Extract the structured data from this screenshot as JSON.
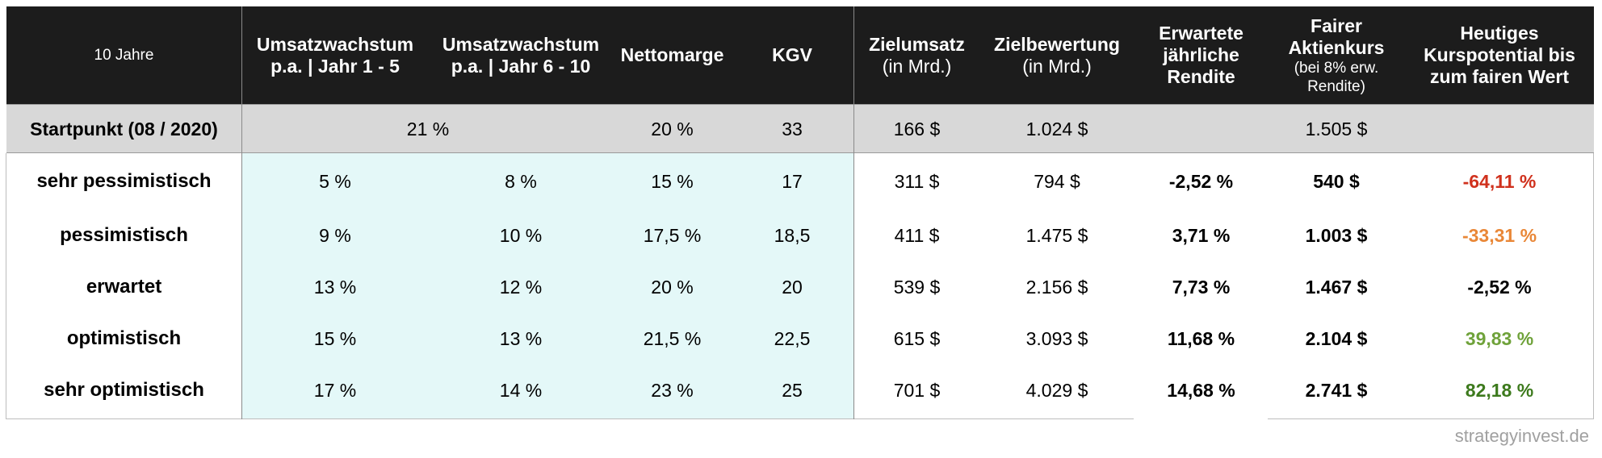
{
  "header": {
    "col0": "10 Jahre",
    "col1": [
      "Umsatzwachstum",
      "p.a. | Jahr 1 - 5"
    ],
    "col2": [
      "Umsatzwachstum",
      "p.a. | Jahr 6 - 10"
    ],
    "col3": "Nettomarge",
    "col4": "KGV",
    "col5": [
      "Zielumsatz",
      "(in Mrd.)"
    ],
    "col6": [
      "Zielbewertung",
      "(in Mrd.)"
    ],
    "col7": [
      "Erwartete",
      "jährliche",
      "Rendite"
    ],
    "col8": [
      "Fairer",
      "Aktienkurs",
      "(bei 8% erw.",
      "Rendite)"
    ],
    "col9": [
      "Heutiges",
      "Kurspotential bis",
      "zum fairen Wert"
    ]
  },
  "start": {
    "label": "Startpunkt (08 / 2020)",
    "growth": "21 %",
    "margin": "20 %",
    "kgv": "33",
    "revenue": "166 $",
    "valuation": "1.024 $",
    "price": "1.505 $"
  },
  "rows": [
    {
      "label": "sehr pessimistisch",
      "g1": "5 %",
      "g2": "8 %",
      "margin": "15 %",
      "kgv": "17",
      "revenue": "311 $",
      "valuation": "794 $",
      "ret": "-2,52 %",
      "price": "540 $",
      "potential": "-64,11 %",
      "color": "#d0311d"
    },
    {
      "label": "pessimistisch",
      "g1": "9 %",
      "g2": "10 %",
      "margin": "17,5 %",
      "kgv": "18,5",
      "revenue": "411 $",
      "valuation": "1.475 $",
      "ret": "3,71 %",
      "price": "1.003 $",
      "potential": "-33,31 %",
      "color": "#e98737"
    },
    {
      "label": "erwartet",
      "g1": "13 %",
      "g2": "12 %",
      "margin": "20 %",
      "kgv": "20",
      "revenue": "539 $",
      "valuation": "2.156 $",
      "ret": "7,73 %",
      "price": "1.467 $",
      "potential": "-2,52 %",
      "color": "#000000"
    },
    {
      "label": "optimistisch",
      "g1": "15 %",
      "g2": "13 %",
      "margin": "21,5 %",
      "kgv": "22,5",
      "revenue": "615 $",
      "valuation": "3.093 $",
      "ret": "11,68 %",
      "price": "2.104 $",
      "potential": "39,83 %",
      "color": "#6fa23a"
    },
    {
      "label": "sehr optimistisch",
      "g1": "17 %",
      "g2": "14 %",
      "margin": "23 %",
      "kgv": "25",
      "revenue": "701 $",
      "valuation": "4.029 $",
      "ret": "14,68 %",
      "price": "2.741 $",
      "potential": "82,18 %",
      "color": "#3d7a1d"
    }
  ],
  "footer": "strategyinvest.de"
}
